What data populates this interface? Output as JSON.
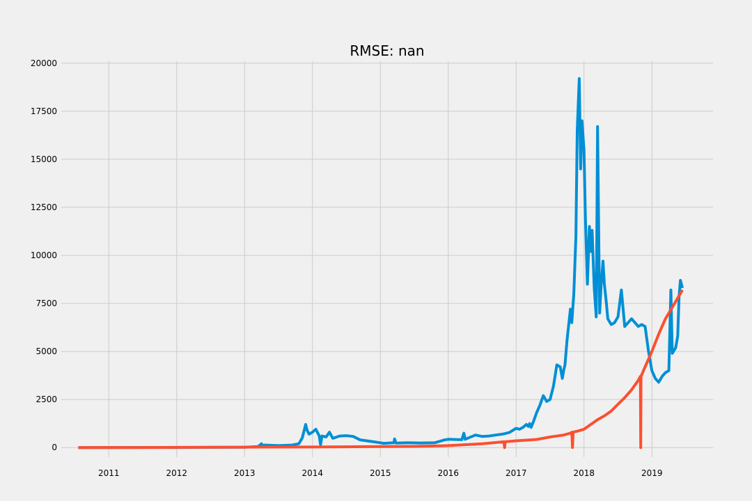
{
  "chart_data": {
    "type": "line",
    "title": "RMSE: nan",
    "xlabel": "",
    "ylabel": "",
    "xlim": [
      2010.3,
      2019.9
    ],
    "ylim": [
      -500,
      20100
    ],
    "grid": true,
    "legend": "none",
    "x_ticks": [
      {
        "value": 2011,
        "label": "2011"
      },
      {
        "value": 2012,
        "label": "2012"
      },
      {
        "value": 2013,
        "label": "2013"
      },
      {
        "value": 2014,
        "label": "2014"
      },
      {
        "value": 2015,
        "label": "2015"
      },
      {
        "value": 2016,
        "label": "2016"
      },
      {
        "value": 2017,
        "label": "2017"
      },
      {
        "value": 2018,
        "label": "2018"
      },
      {
        "value": 2019,
        "label": "2019"
      }
    ],
    "y_ticks": [
      {
        "value": 0,
        "label": "0"
      },
      {
        "value": 2500,
        "label": "2500"
      },
      {
        "value": 5000,
        "label": "5000"
      },
      {
        "value": 7500,
        "label": "7500"
      },
      {
        "value": 10000,
        "label": "10000"
      },
      {
        "value": 12500,
        "label": "12500"
      },
      {
        "value": 15000,
        "label": "15000"
      },
      {
        "value": 17500,
        "label": "17500"
      },
      {
        "value": 20000,
        "label": "20000"
      }
    ],
    "series": [
      {
        "color": "#008fd5",
        "x": [
          2010.55,
          2011.0,
          2011.5,
          2012.0,
          2012.5,
          2013.0,
          2013.2,
          2013.25,
          2013.27,
          2013.3,
          2013.5,
          2013.7,
          2013.8,
          2013.85,
          2013.9,
          2013.92,
          2013.95,
          2014.0,
          2014.05,
          2014.1,
          2014.12,
          2014.14,
          2014.2,
          2014.25,
          2014.3,
          2014.4,
          2014.5,
          2014.6,
          2014.7,
          2014.8,
          2014.9,
          2015.0,
          2015.05,
          2015.2,
          2015.21,
          2015.23,
          2015.4,
          2015.6,
          2015.8,
          2015.95,
          2016.0,
          2016.1,
          2016.2,
          2016.23,
          2016.25,
          2016.4,
          2016.5,
          2016.6,
          2016.7,
          2016.8,
          2016.9,
          2017.0,
          2017.05,
          2017.1,
          2017.15,
          2017.18,
          2017.2,
          2017.22,
          2017.25,
          2017.3,
          2017.35,
          2017.4,
          2017.45,
          2017.5,
          2017.55,
          2017.6,
          2017.65,
          2017.68,
          2017.7,
          2017.72,
          2017.75,
          2017.8,
          2017.82,
          2017.85,
          2017.88,
          2017.9,
          2017.93,
          2017.95,
          2017.97,
          2018.0,
          2018.02,
          2018.05,
          2018.08,
          2018.1,
          2018.12,
          2018.15,
          2018.18,
          2018.2,
          2018.22,
          2018.23,
          2018.25,
          2018.28,
          2018.3,
          2018.33,
          2018.35,
          2018.4,
          2018.45,
          2018.5,
          2018.55,
          2018.6,
          2018.65,
          2018.7,
          2018.75,
          2018.8,
          2018.85,
          2018.9,
          2018.95,
          2019.0,
          2019.05,
          2019.1,
          2019.15,
          2019.2,
          2019.25,
          2019.28,
          2019.3,
          2019.35,
          2019.38,
          2019.4,
          2019.42,
          2019.45
        ],
        "values": [
          0,
          1,
          5,
          5,
          10,
          15,
          50,
          200,
          100,
          130,
          100,
          130,
          200,
          500,
          1200,
          900,
          700,
          800,
          950,
          600,
          150,
          600,
          550,
          800,
          480,
          600,
          620,
          580,
          400,
          350,
          300,
          250,
          220,
          250,
          450,
          230,
          250,
          240,
          250,
          400,
          430,
          420,
          410,
          750,
          430,
          650,
          580,
          600,
          650,
          700,
          780,
          1000,
          950,
          1050,
          1200,
          1100,
          1250,
          1050,
          1300,
          1800,
          2200,
          2700,
          2400,
          2500,
          3200,
          4300,
          4200,
          3600,
          4000,
          4300,
          5600,
          7200,
          6500,
          8000,
          11000,
          16500,
          19200,
          14500,
          17000,
          15500,
          12000,
          8500,
          11500,
          10200,
          11300,
          8300,
          6800,
          16700,
          10000,
          7000,
          8300,
          9700,
          8500,
          7500,
          6700,
          6400,
          6500,
          6800,
          8200,
          6300,
          6500,
          6700,
          6500,
          6300,
          6400,
          6300,
          5000,
          4000,
          3600,
          3400,
          3700,
          3900,
          4000,
          8200,
          4900,
          5200,
          5800,
          7900,
          8700,
          8300
        ]
      },
      {
        "color": "#fc4f30",
        "x": [
          2010.55,
          2011.0,
          2011.5,
          2012.0,
          2012.5,
          2013.0,
          2013.5,
          2014.0,
          2014.5,
          2015.0,
          2015.5,
          2016.0,
          2016.5,
          2016.82,
          2016.83,
          2016.84,
          2017.0,
          2017.3,
          2017.5,
          2017.7,
          2017.8,
          2017.82,
          2017.83,
          2017.84,
          2017.9,
          2018.0,
          2018.1,
          2018.2,
          2018.3,
          2018.4,
          2018.5,
          2018.6,
          2018.7,
          2018.8,
          2018.83,
          2018.835,
          2018.84,
          2018.9,
          2019.0,
          2019.1,
          2019.2,
          2019.3,
          2019.4,
          2019.45
        ],
        "values": [
          0,
          2,
          5,
          10,
          15,
          20,
          25,
          30,
          40,
          50,
          60,
          100,
          200,
          300,
          0,
          300,
          350,
          420,
          550,
          650,
          750,
          800,
          0,
          800,
          850,
          950,
          1200,
          1450,
          1650,
          1900,
          2250,
          2600,
          3000,
          3500,
          3700,
          0,
          3700,
          4200,
          5000,
          5900,
          6700,
          7300,
          7900,
          8200
        ]
      }
    ]
  }
}
